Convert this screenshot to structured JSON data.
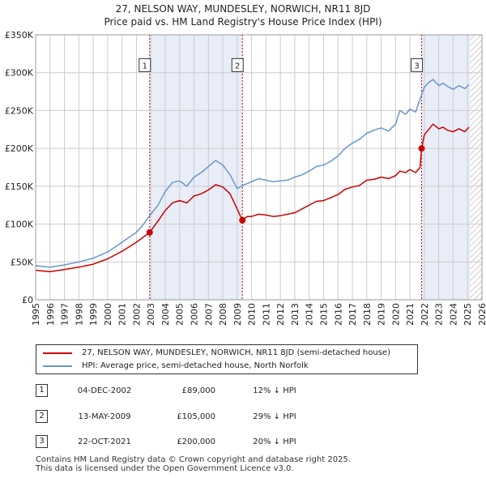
{
  "title_line1": "27, NELSON WAY, MUNDESLEY, NORWICH, NR11 8JD",
  "title_line2": "Price paid vs. HM Land Registry's House Price Index (HPI)",
  "colors": {
    "price": "#cc0000",
    "hpi": "#6a97c9",
    "shade": "#e8edf8",
    "grid": "#cccccc"
  },
  "chart_data": {
    "type": "line",
    "xlim": [
      1995,
      2026
    ],
    "ylim": [
      0,
      350000
    ],
    "y_ticks": [
      0,
      50000,
      100000,
      150000,
      200000,
      250000,
      300000,
      350000
    ],
    "y_tick_labels": [
      "£0",
      "£50K",
      "£100K",
      "£150K",
      "£200K",
      "£250K",
      "£300K",
      "£350K"
    ],
    "x_ticks": [
      "1995",
      "1996",
      "1997",
      "1998",
      "1999",
      "2000",
      "2001",
      "2002",
      "2003",
      "2004",
      "2005",
      "2006",
      "2007",
      "2008",
      "2009",
      "2010",
      "2011",
      "2012",
      "2013",
      "2014",
      "2015",
      "2016",
      "2017",
      "2018",
      "2019",
      "2020",
      "2021",
      "2022",
      "2023",
      "2024",
      "2025",
      "2026"
    ],
    "shaded_ranges": [
      [
        2002.92,
        2009.36
      ],
      [
        2021.81,
        2025.2
      ]
    ],
    "hatched_from": 2025.2,
    "series": [
      {
        "name": "27, NELSON WAY, MUNDESLEY, NORWICH, NR11 8JD (semi-detached house)",
        "x": [
          1995,
          1996,
          1997,
          1998,
          1999,
          2000,
          2001,
          2002,
          2002.92,
          2003.5,
          2004,
          2004.5,
          2005,
          2005.5,
          2006,
          2006.5,
          2007,
          2007.5,
          2008,
          2008.5,
          2009,
          2009.36,
          2009.7,
          2010,
          2010.5,
          2011,
          2011.5,
          2012,
          2012.5,
          2013,
          2013.5,
          2014,
          2014.5,
          2015,
          2015.5,
          2016,
          2016.5,
          2017,
          2017.5,
          2018,
          2018.5,
          2019,
          2019.5,
          2020,
          2020.3,
          2020.7,
          2021,
          2021.4,
          2021.7,
          2021.81,
          2022,
          2022.3,
          2022.6,
          2023,
          2023.3,
          2023.6,
          2024,
          2024.4,
          2024.8,
          2025.1
        ],
        "values": [
          39000,
          37000,
          40000,
          43000,
          47000,
          54000,
          64000,
          76000,
          89000,
          104000,
          118000,
          128000,
          131000,
          128000,
          137000,
          140000,
          145000,
          152000,
          149000,
          140000,
          120000,
          105000,
          110000,
          110000,
          113000,
          112000,
          110000,
          111000,
          113000,
          115000,
          120000,
          125000,
          130000,
          131000,
          135000,
          139000,
          146000,
          149000,
          151000,
          158000,
          159000,
          162000,
          160000,
          164000,
          170000,
          168000,
          172000,
          168000,
          175000,
          200000,
          218000,
          225000,
          232000,
          226000,
          228000,
          224000,
          222000,
          226000,
          222000,
          228000
        ]
      },
      {
        "name": "HPI: Average price, semi-detached house, North Norfolk",
        "x": [
          1995,
          1996,
          1997,
          1998,
          1999,
          2000,
          2001,
          2002,
          2002.5,
          2003,
          2003.5,
          2004,
          2004.5,
          2005,
          2005.5,
          2006,
          2006.5,
          2007,
          2007.5,
          2008,
          2008.5,
          2009,
          2009.5,
          2010,
          2010.5,
          2011,
          2011.5,
          2012,
          2012.5,
          2013,
          2013.5,
          2014,
          2014.5,
          2015,
          2015.5,
          2016,
          2016.5,
          2017,
          2017.5,
          2018,
          2018.5,
          2019,
          2019.5,
          2020,
          2020.3,
          2020.7,
          2021,
          2021.4,
          2021.7,
          2022,
          2022.3,
          2022.6,
          2023,
          2023.3,
          2023.6,
          2024,
          2024.4,
          2024.8,
          2025.1
        ],
        "values": [
          45000,
          43000,
          46000,
          50000,
          55000,
          63000,
          76000,
          89000,
          100000,
          113000,
          125000,
          143000,
          155000,
          157000,
          150000,
          162000,
          168000,
          176000,
          184000,
          178000,
          165000,
          147000,
          152000,
          156000,
          160000,
          158000,
          156000,
          157000,
          158000,
          162000,
          165000,
          170000,
          176000,
          178000,
          183000,
          190000,
          200000,
          207000,
          212000,
          220000,
          224000,
          227000,
          223000,
          232000,
          250000,
          245000,
          252000,
          248000,
          265000,
          281000,
          287000,
          291000,
          283000,
          286000,
          282000,
          278000,
          283000,
          279000,
          284000
        ]
      }
    ],
    "markers": [
      {
        "id": "1",
        "x": 2002.92,
        "value": 89000
      },
      {
        "id": "2",
        "x": 2009.36,
        "value": 105000
      },
      {
        "id": "3",
        "x": 2021.81,
        "value": 200000
      }
    ]
  },
  "legend": {
    "price_label": "27, NELSON WAY, MUNDESLEY, NORWICH, NR11 8JD (semi-detached house)",
    "hpi_label": "HPI: Average price, semi-detached house, North Norfolk"
  },
  "transactions": [
    {
      "id": "1",
      "date": "04-DEC-2002",
      "price": "£89,000",
      "hpi": "12% ↓ HPI"
    },
    {
      "id": "2",
      "date": "13-MAY-2009",
      "price": "£105,000",
      "hpi": "29% ↓ HPI"
    },
    {
      "id": "3",
      "date": "22-OCT-2021",
      "price": "£200,000",
      "hpi": "20% ↓ HPI"
    }
  ],
  "footer": {
    "line1": "Contains HM Land Registry data © Crown copyright and database right 2025.",
    "line2": "This data is licensed under the Open Government Licence v3.0."
  }
}
